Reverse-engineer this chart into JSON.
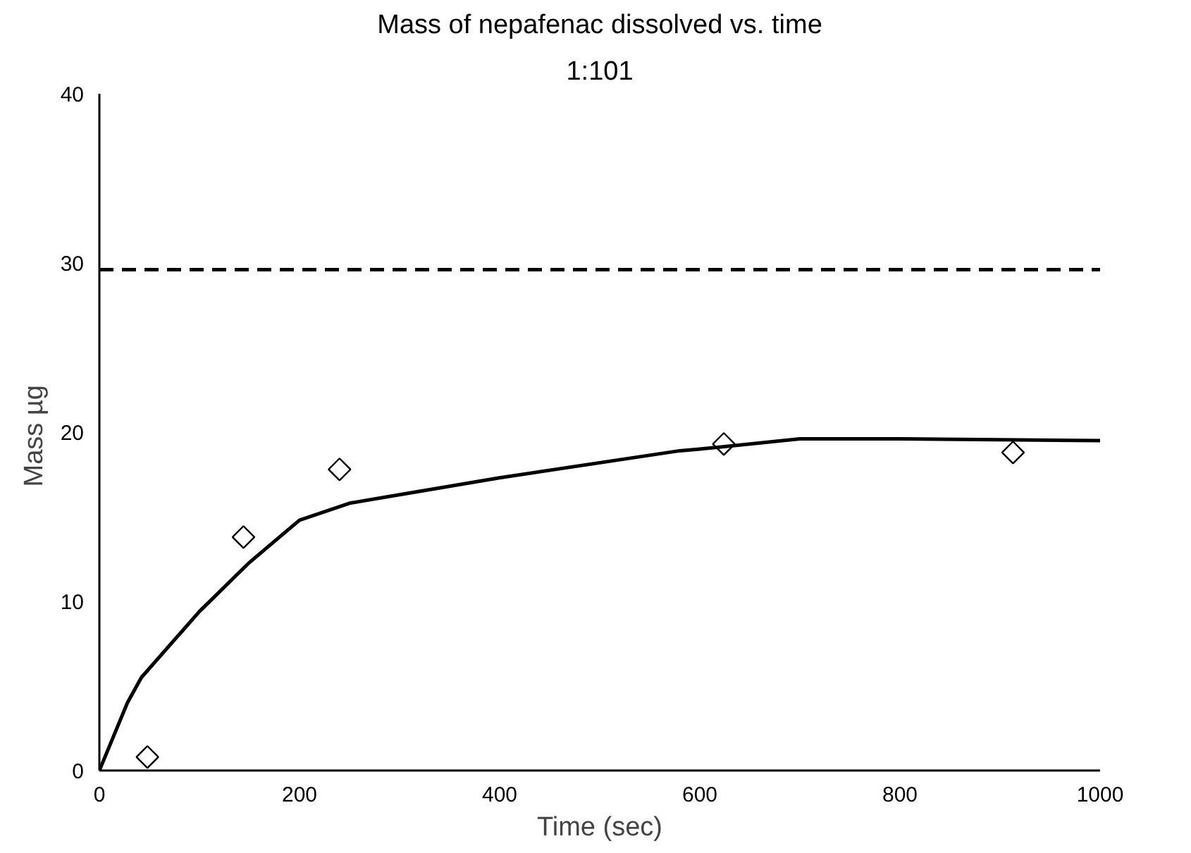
{
  "chart_data": {
    "type": "scatter",
    "title": "Mass of nepafenac dissolved vs. time",
    "subtitle": "1:101",
    "xlabel": "Time (sec)",
    "ylabel": "Mass  µg",
    "xlim": [
      0,
      1000
    ],
    "ylim": [
      0,
      40
    ],
    "xticks": [
      0,
      200,
      400,
      600,
      800,
      1000
    ],
    "yticks": [
      0,
      10,
      20,
      30,
      40
    ],
    "grid": false,
    "marker": "diamond",
    "series": [
      {
        "color": "#000000",
        "x": [
          48,
          144,
          240,
          624,
          913
        ],
        "values": [
          0.8,
          13.8,
          17.8,
          19.3,
          18.8
        ]
      },
      {
        "type": "line",
        "color": "#000000",
        "marker": "none",
        "line_style": "solid",
        "x": [
          0,
          28,
          42,
          100,
          150,
          200,
          250,
          300,
          400,
          580,
          600,
          700,
          800,
          1000
        ],
        "values": [
          0,
          4.0,
          5.5,
          9.4,
          12.3,
          14.8,
          15.8,
          16.3,
          17.3,
          18.9,
          19.0,
          19.6,
          19.6,
          19.5
        ]
      }
    ],
    "ref_lines": [
      {
        "axis": "y",
        "value": 29.6,
        "label": null,
        "color": "#000000",
        "line_style": "dashed"
      }
    ]
  }
}
